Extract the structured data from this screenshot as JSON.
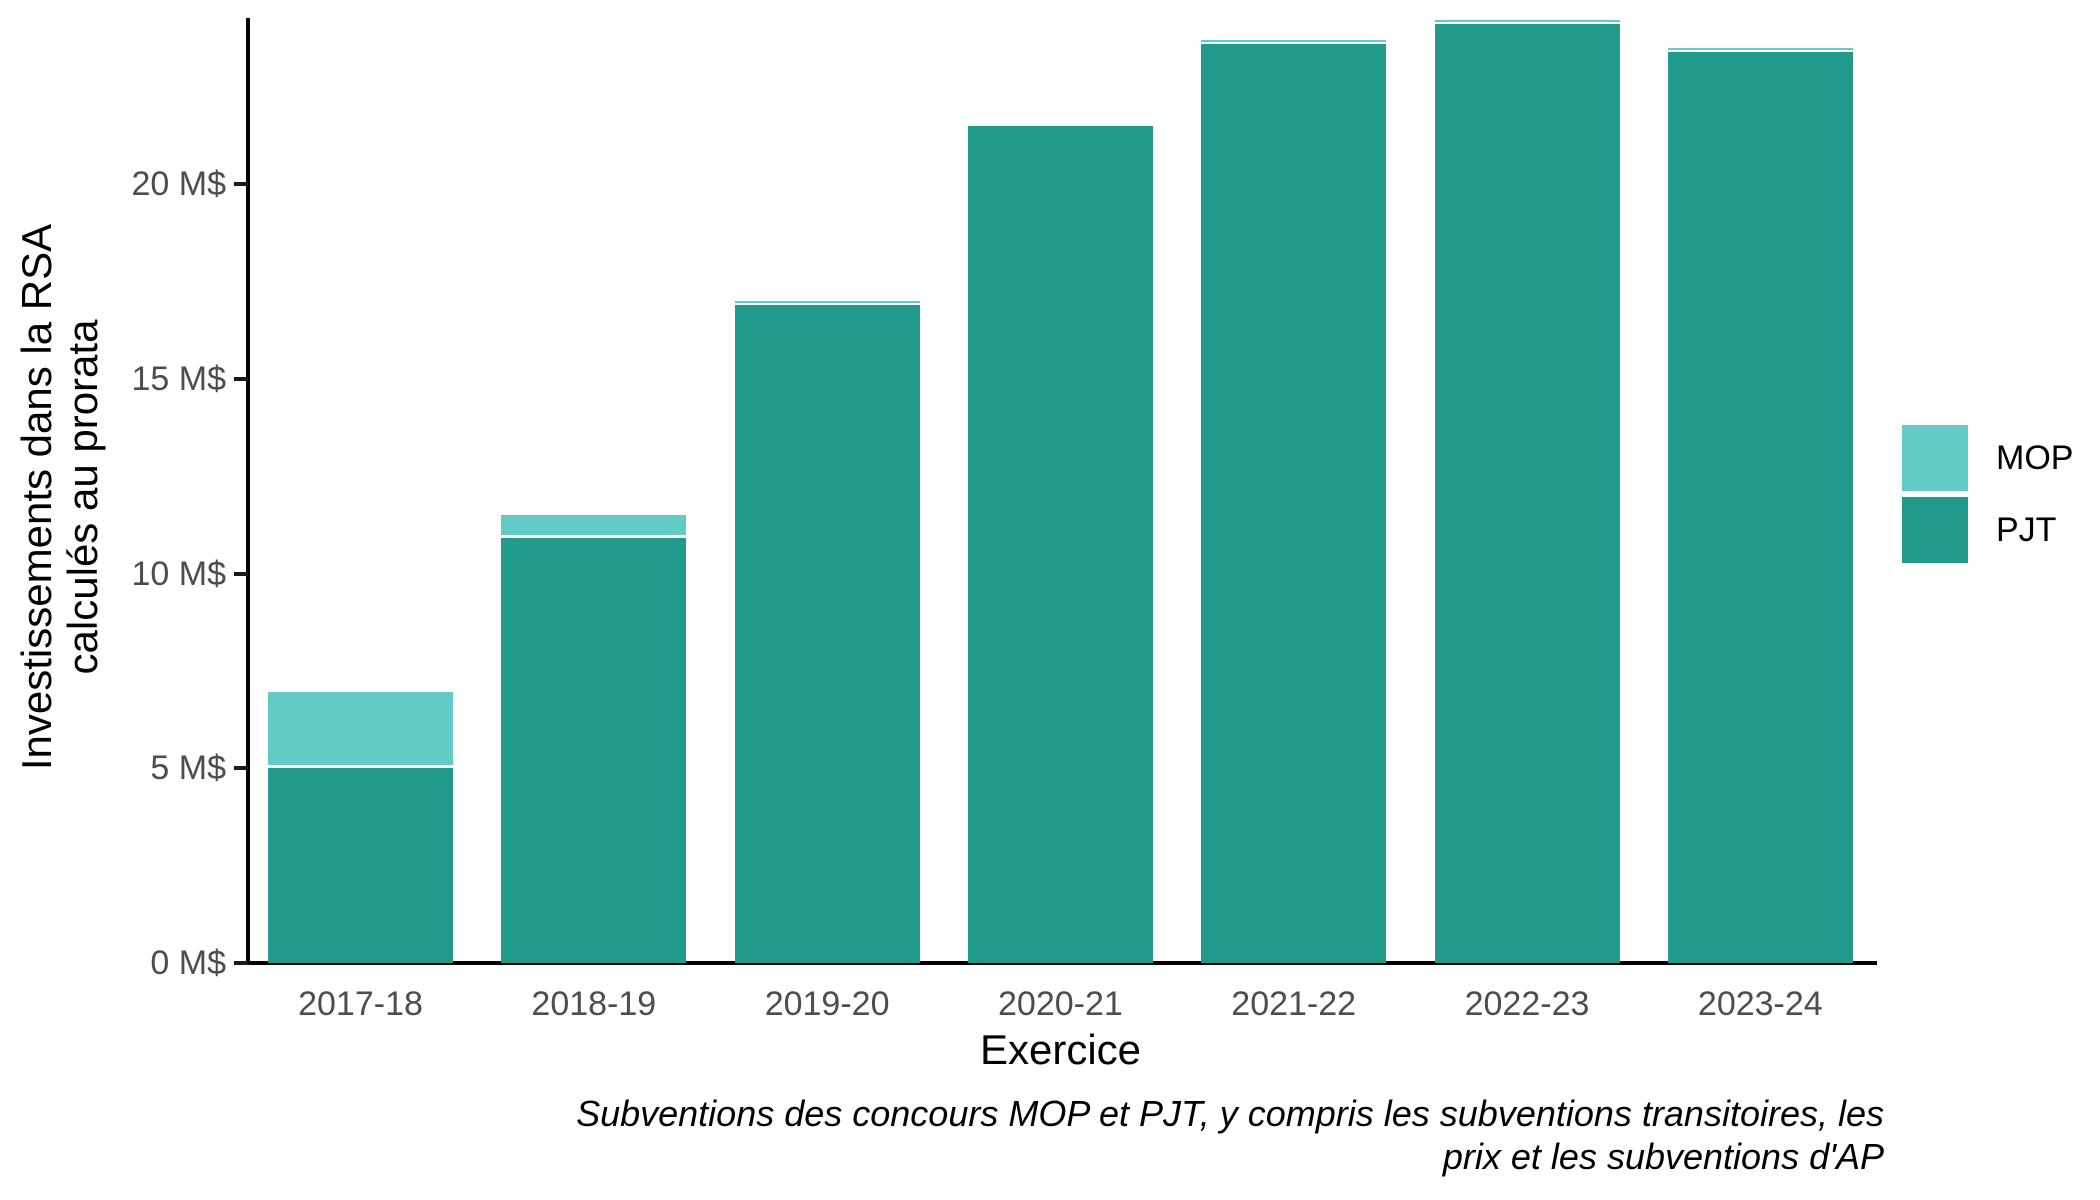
{
  "chart_data": {
    "type": "bar",
    "stacked": true,
    "xlabel": "Exercice",
    "ylabel_lines": [
      "Investissements dans la RSA",
      "calculés au prorata"
    ],
    "categories": [
      "2017-18",
      "2018-19",
      "2019-20",
      "2020-21",
      "2021-22",
      "2022-23",
      "2023-24"
    ],
    "series": [
      {
        "name": "MOP",
        "color": "#63cbc5",
        "values": [
          1.95,
          0.6,
          0.1,
          0,
          0.03,
          0.02,
          0.05
        ]
      },
      {
        "name": "PJT",
        "color": "#219a8b",
        "values": [
          5.0,
          10.9,
          16.9,
          21.5,
          23.6,
          24.1,
          23.4
        ]
      }
    ],
    "y_ticks": [
      {
        "value": 0,
        "label": "0 M$"
      },
      {
        "value": 5,
        "label": "5 M$"
      },
      {
        "value": 10,
        "label": "10 M$"
      },
      {
        "value": 15,
        "label": "15 M$"
      },
      {
        "value": 20,
        "label": "20 M$"
      }
    ],
    "ylim": [
      0,
      24.3
    ],
    "grid": false,
    "legend_position": "right",
    "caption_lines": [
      "Subventions des concours MOP et PJT, y compris les subventions transitoires, les",
      "prix et les subventions d'AP"
    ]
  },
  "legend": {
    "items": [
      {
        "label": "MOP",
        "color": "#63cbc5"
      },
      {
        "label": "PJT",
        "color": "#219a8b"
      }
    ]
  },
  "colors": {
    "mop": "#63cbc5",
    "pjt": "#219a8b",
    "axis_text": "#4d4d4d",
    "axis_line": "#000000",
    "background": "#ffffff"
  }
}
